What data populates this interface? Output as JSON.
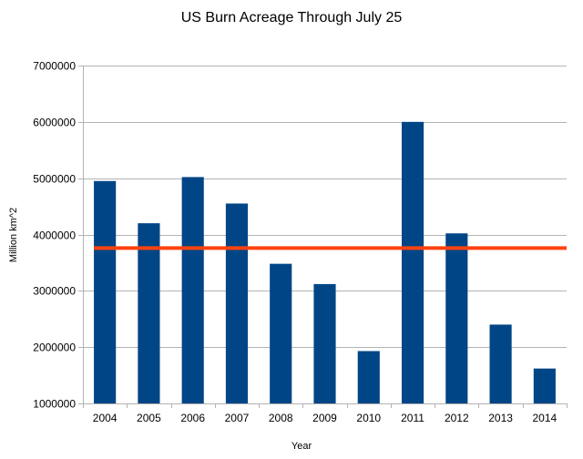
{
  "chart_data": {
    "type": "bar",
    "title": "US Burn Acreage Through July 25",
    "xlabel": "Year",
    "ylabel": "Million km^2",
    "categories": [
      "2004",
      "2005",
      "2006",
      "2007",
      "2008",
      "2009",
      "2010",
      "2011",
      "2012",
      "2013",
      "2014"
    ],
    "values": [
      4950000,
      4200000,
      5020000,
      4550000,
      3480000,
      3120000,
      1930000,
      6000000,
      4020000,
      2400000,
      1620000
    ],
    "ylim": [
      1000000,
      7000000
    ],
    "yticks": [
      "1000000",
      "2000000",
      "3000000",
      "4000000",
      "5000000",
      "6000000",
      "7000000"
    ],
    "reference_line": {
      "value": 3760000
    },
    "grid": true,
    "colors": {
      "bar": "#004586",
      "reference_line": "#ff420e",
      "grid": "#b3b3b3",
      "axis": "#b3b3b3"
    }
  }
}
